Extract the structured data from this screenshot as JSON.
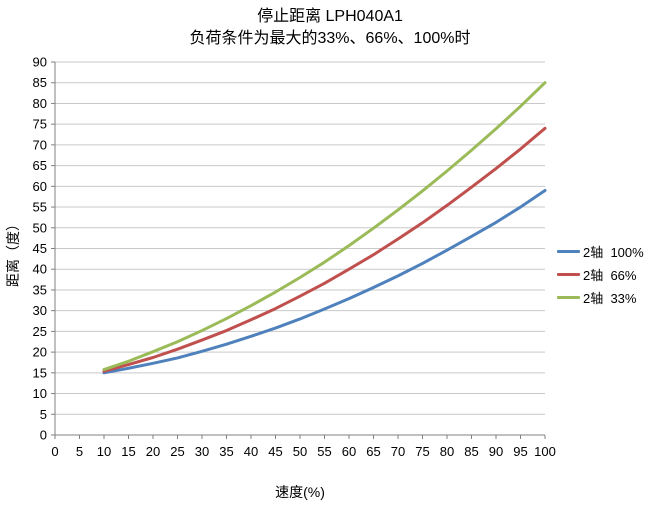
{
  "chart_data": {
    "type": "line",
    "title": "停止距离 LPH040A1",
    "subtitle": "负荷条件为最大的33%、66%、100%时",
    "xlabel": "速度(%)",
    "ylabel": "距离（度）",
    "xlim": [
      0,
      100
    ],
    "ylim": [
      0,
      90
    ],
    "x_tick_step": 5,
    "y_tick_step": 5,
    "grid": "horizontal",
    "legend_position": "right",
    "x": [
      10,
      15,
      20,
      25,
      30,
      35,
      40,
      45,
      50,
      55,
      60,
      65,
      70,
      75,
      80,
      85,
      90,
      95,
      100
    ],
    "series": [
      {
        "name": "2轴  100%",
        "color": "#4F81BD",
        "values": [
          15.0,
          16.1,
          17.3,
          18.6,
          20.2,
          21.9,
          23.8,
          25.8,
          28.0,
          30.4,
          32.9,
          35.6,
          38.4,
          41.4,
          44.6,
          47.9,
          51.3,
          55.0,
          59.0
        ]
      },
      {
        "name": "2轴  66%",
        "color": "#C0504D",
        "values": [
          15.4,
          17.0,
          18.7,
          20.7,
          22.9,
          25.2,
          27.8,
          30.5,
          33.5,
          36.6,
          40.0,
          43.5,
          47.3,
          51.2,
          55.4,
          59.8,
          64.3,
          69.0,
          74.0
        ]
      },
      {
        "name": "2轴  33%",
        "color": "#9BBB59",
        "values": [
          15.8,
          17.8,
          20.1,
          22.5,
          25.2,
          28.1,
          31.2,
          34.5,
          38.0,
          41.7,
          45.7,
          49.9,
          54.3,
          58.9,
          63.7,
          68.7,
          73.9,
          79.3,
          85.0
        ]
      }
    ],
    "colors": {
      "gridline": "#C9C9C9",
      "axis": "#808080",
      "text": "#000000",
      "background": "#FFFFFF"
    }
  }
}
